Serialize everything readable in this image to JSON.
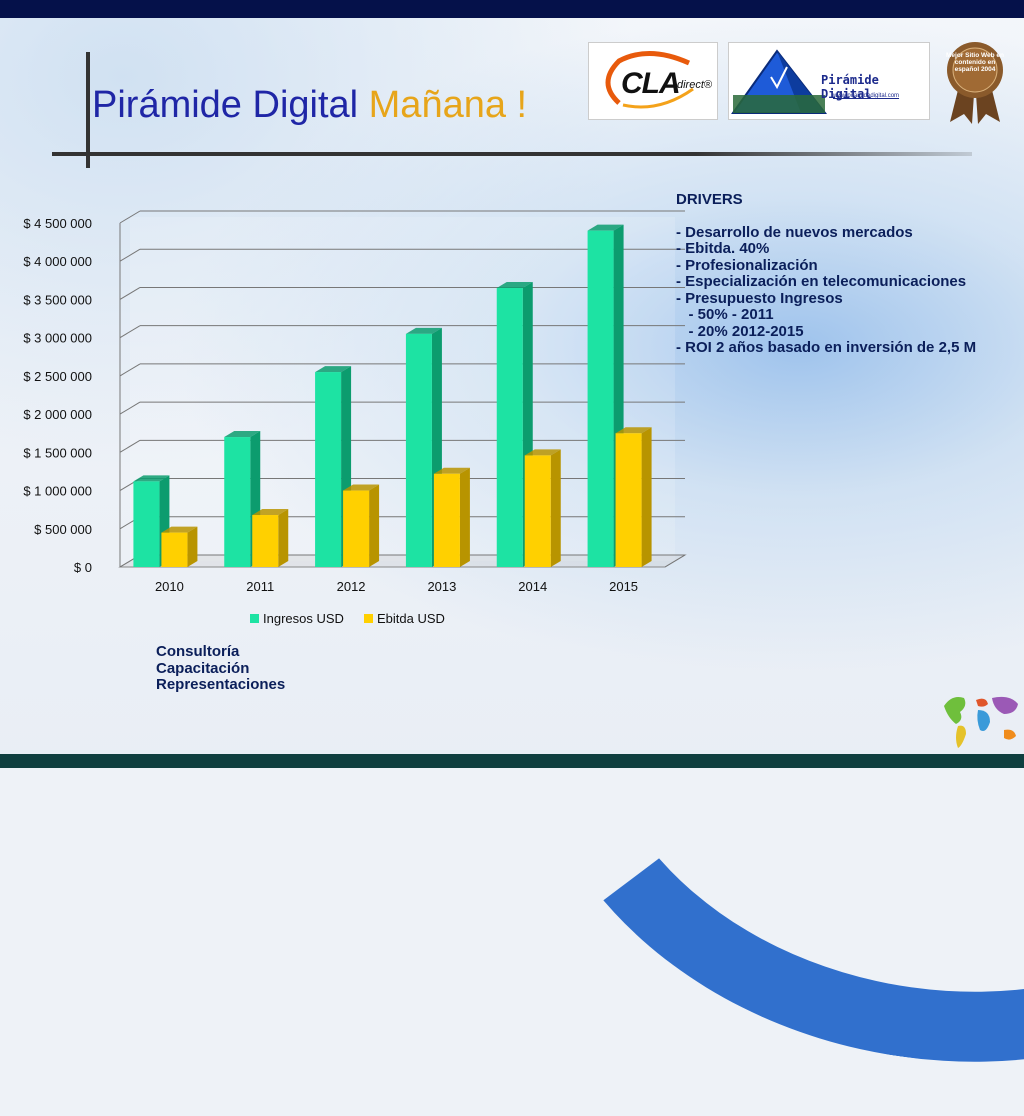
{
  "slide": {
    "title_part1": "Pirámide Digital",
    "title_part2": "Mañana !"
  },
  "logos": {
    "cla": {
      "brand": "CLA",
      "sub": "direct®"
    },
    "piramide": {
      "name": "Pirámide Digital",
      "url": "www.piramidedigital.com"
    },
    "award": {
      "text": "Mejor Sitio Web en contenido en español 2004"
    }
  },
  "drivers": {
    "heading": "DRIVERS",
    "items": [
      "- Desarrollo de nuevos mercados",
      "- Ebitda. 40%",
      "- Profesionalización",
      "- Especialización en telecomunicaciones",
      "- Presupuesto Ingresos",
      "   - 50% - 2011",
      "   - 20% 2012-2015",
      "- ROI 2 años basado en inversión de 2,5 M"
    ]
  },
  "services": [
    "Consultoría",
    "Capacitación",
    "Representaciones"
  ],
  "colors": {
    "ingresos": "#1de3a3",
    "ingresos_side": "#0c9c6e",
    "ebitda": "#ffd000",
    "ebitda_side": "#b89400",
    "title_blue": "#1f26a6",
    "title_gold": "#e7a51a",
    "header_band": "#05114a",
    "footer_band": "#0f3f3f"
  },
  "chart_data": {
    "type": "bar",
    "style": "3d-clustered-column",
    "categories": [
      "2010",
      "2011",
      "2012",
      "2013",
      "2014",
      "2015"
    ],
    "series": [
      {
        "name": "Ingresos USD",
        "values": [
          1120000,
          1700000,
          2550000,
          3050000,
          3650000,
          4400000
        ]
      },
      {
        "name": "Ebitda USD",
        "values": [
          450000,
          680000,
          1000000,
          1220000,
          1460000,
          1750000
        ]
      }
    ],
    "yticks": [
      "$ 0",
      "$ 500 000",
      "$ 1 000 000",
      "$ 1 500 000",
      "$ 2 000 000",
      "$ 2 500 000",
      "$ 3 000 000",
      "$ 3 500 000",
      "$ 4 000 000",
      "$ 4 500 000"
    ],
    "ylim": [
      0,
      4500000
    ],
    "grid": true,
    "legend": "bottom"
  }
}
